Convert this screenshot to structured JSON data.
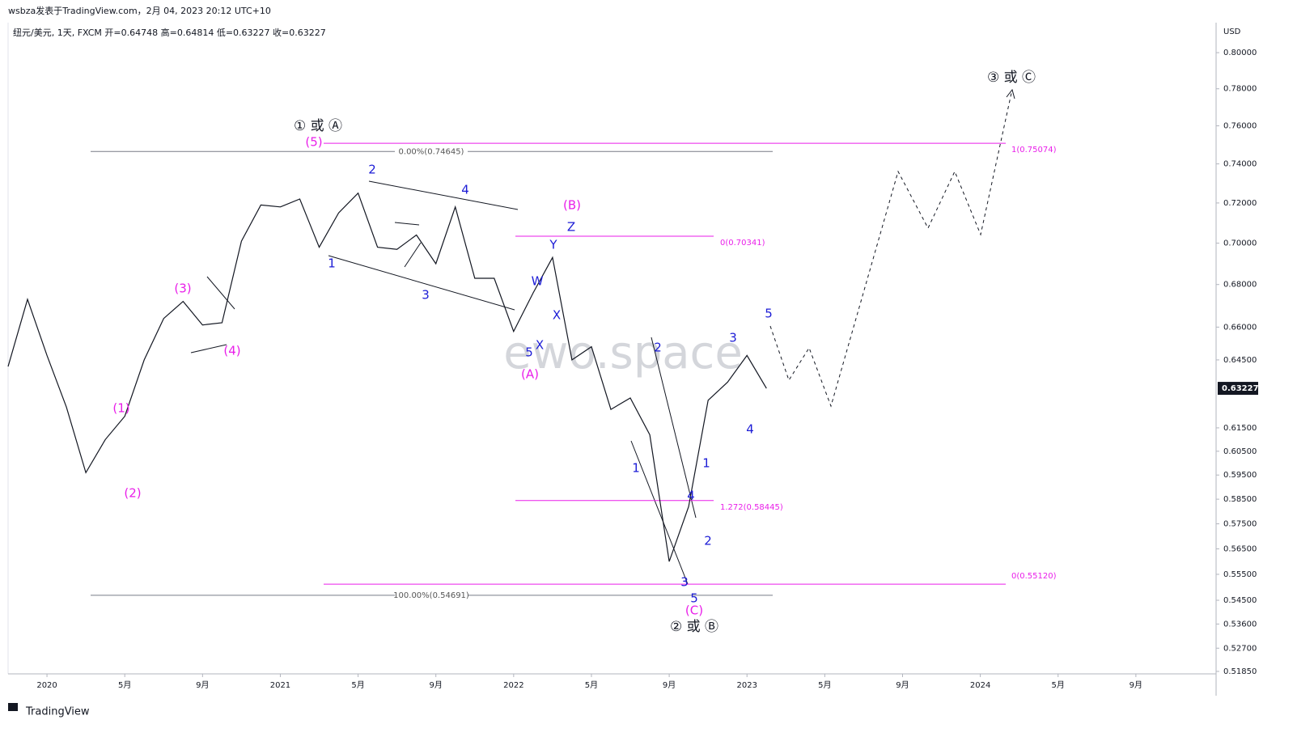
{
  "header": {
    "author_line": "wsbza发表于TradingView.com，2月 04, 2023 20:12 UTC+10",
    "symbol_line": "纽元/美元, 1天, FXCM  开=0.64748  高=0.64814  低=0.63227  收=0.63227",
    "watermark": "ewo.space",
    "footer": "TradingView"
  },
  "chart_data": {
    "type": "line",
    "color": "#131722",
    "log_scale": true,
    "currency": "USD",
    "last_price": {
      "value": 0.63227,
      "label": "0.63227"
    },
    "x": [
      "2019-11",
      "2019-12",
      "2020-01",
      "2020-02",
      "2020-03",
      "2020-04",
      "2020-05",
      "2020-06",
      "2020-07",
      "2020-08",
      "2020-09",
      "2020-10",
      "2020-11",
      "2020-12",
      "2021-01",
      "2021-02",
      "2021-03",
      "2021-04",
      "2021-05",
      "2021-06",
      "2021-07",
      "2021-08",
      "2021-09",
      "2021-10",
      "2021-11",
      "2021-12",
      "2022-01",
      "2022-02",
      "2022-03",
      "2022-04",
      "2022-05",
      "2022-06",
      "2022-07",
      "2022-08",
      "2022-09",
      "2022-10",
      "2022-11",
      "2022-12",
      "2023-01",
      "2023-02"
    ],
    "values": [
      0.642,
      0.673,
      0.647,
      0.624,
      0.596,
      0.61,
      0.62,
      0.645,
      0.664,
      0.672,
      0.661,
      0.662,
      0.701,
      0.719,
      0.718,
      0.722,
      0.698,
      0.715,
      0.725,
      0.698,
      0.697,
      0.704,
      0.69,
      0.718,
      0.683,
      0.683,
      0.658,
      0.676,
      0.693,
      0.645,
      0.651,
      0.623,
      0.628,
      0.612,
      0.56,
      0.582,
      0.627,
      0.635,
      0.647,
      0.63227
    ],
    "xlim": [
      "2019-11",
      "2025-01"
    ],
    "xticks": [
      {
        "value": "2020-01",
        "label": "2020"
      },
      {
        "value": "2020-05",
        "label": "5月"
      },
      {
        "value": "2020-09",
        "label": "9月"
      },
      {
        "value": "2021-01",
        "label": "2021"
      },
      {
        "value": "2021-05",
        "label": "5月"
      },
      {
        "value": "2021-09",
        "label": "9月"
      },
      {
        "value": "2022-01",
        "label": "2022"
      },
      {
        "value": "2022-05",
        "label": "5月"
      },
      {
        "value": "2022-09",
        "label": "9月"
      },
      {
        "value": "2023-01",
        "label": "2023"
      },
      {
        "value": "2023-05",
        "label": "5月"
      },
      {
        "value": "2023-09",
        "label": "9月"
      },
      {
        "value": "2024-01",
        "label": "2024"
      },
      {
        "value": "2024-05",
        "label": "5月"
      },
      {
        "value": "2024-09",
        "label": "9月"
      }
    ],
    "ylim": [
      0.5176,
      0.817
    ],
    "yticks": [
      {
        "value": 0.8,
        "label": "0.80000"
      },
      {
        "value": 0.78,
        "label": "0.78000"
      },
      {
        "value": 0.76,
        "label": "0.76000"
      },
      {
        "value": 0.74,
        "label": "0.74000"
      },
      {
        "value": 0.72,
        "label": "0.72000"
      },
      {
        "value": 0.7,
        "label": "0.70000"
      },
      {
        "value": 0.68,
        "label": "0.68000"
      },
      {
        "value": 0.66,
        "label": "0.66000"
      },
      {
        "value": 0.645,
        "label": "0.64500"
      },
      {
        "value": 0.615,
        "label": "0.61500"
      },
      {
        "value": 0.605,
        "label": "0.60500"
      },
      {
        "value": 0.595,
        "label": "0.59500"
      },
      {
        "value": 0.585,
        "label": "0.58500"
      },
      {
        "value": 0.575,
        "label": "0.57500"
      },
      {
        "value": 0.565,
        "label": "0.56500"
      },
      {
        "value": 0.555,
        "label": "0.55500"
      },
      {
        "value": 0.545,
        "label": "0.54500"
      },
      {
        "value": 0.536,
        "label": "0.53600"
      },
      {
        "value": 0.527,
        "label": "0.52700"
      },
      {
        "value": 0.5185,
        "label": "0.51850"
      }
    ],
    "levels": [
      {
        "value": 0.74645,
        "label": "0.00%(0.74645)",
        "color": "#787b86"
      },
      {
        "value": 0.54691,
        "label": "100.00%(0.54691)",
        "color": "#787b86"
      },
      {
        "value": 0.75074,
        "label": "1(0.75074)",
        "color": "#e91ee9"
      },
      {
        "value": 0.70341,
        "label": "0(0.70341)",
        "color": "#e91ee9"
      },
      {
        "value": 0.58445,
        "label": "1.272(0.58445)",
        "color": "#e91ee9"
      },
      {
        "value": 0.5512,
        "label": "0(0.55120)",
        "color": "#e91ee9"
      }
    ],
    "annotations": [
      {
        "text": "① 或 Ⓐ",
        "color": "#131722"
      },
      {
        "text": "(5)",
        "color": "#e91ee9"
      },
      {
        "text": "(1)",
        "color": "#e91ee9"
      },
      {
        "text": "(2)",
        "color": "#e91ee9"
      },
      {
        "text": "(3)",
        "color": "#e91ee9"
      },
      {
        "text": "(4)",
        "color": "#e91ee9"
      },
      {
        "text": "1",
        "color": "#1c1cd6"
      },
      {
        "text": "2",
        "color": "#1c1cd6"
      },
      {
        "text": "3",
        "color": "#1c1cd6"
      },
      {
        "text": "4",
        "color": "#1c1cd6"
      },
      {
        "text": "5",
        "color": "#1c1cd6"
      },
      {
        "text": "X",
        "color": "#1c1cd6"
      },
      {
        "text": "W",
        "color": "#1c1cd6"
      },
      {
        "text": "X",
        "color": "#1c1cd6"
      },
      {
        "text": "Y",
        "color": "#1c1cd6"
      },
      {
        "text": "Z",
        "color": "#1c1cd6"
      },
      {
        "text": "(B)",
        "color": "#e91ee9"
      },
      {
        "text": "(A)",
        "color": "#e91ee9"
      },
      {
        "text": "1",
        "color": "#1c1cd6"
      },
      {
        "text": "2",
        "color": "#1c1cd6"
      },
      {
        "text": "3",
        "color": "#1c1cd6"
      },
      {
        "text": "4",
        "color": "#1c1cd6"
      },
      {
        "text": "5",
        "color": "#1c1cd6"
      },
      {
        "text": "(C)",
        "color": "#e91ee9"
      },
      {
        "text": "② 或 Ⓑ",
        "color": "#131722"
      },
      {
        "text": "1",
        "color": "#1c1cd6"
      },
      {
        "text": "2",
        "color": "#1c1cd6"
      },
      {
        "text": "3",
        "color": "#1c1cd6"
      },
      {
        "text": "4",
        "color": "#1c1cd6"
      },
      {
        "text": "5",
        "color": "#1c1cd6"
      },
      {
        "text": "③ 或 Ⓒ",
        "color": "#131722"
      }
    ]
  }
}
